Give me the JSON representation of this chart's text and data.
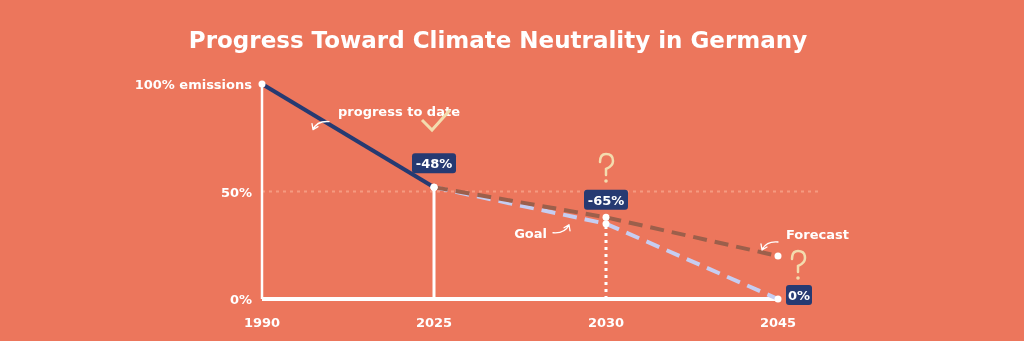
{
  "chart_data": {
    "type": "line",
    "title": "Progress Toward Climate Neutrality in Germany",
    "categories": [
      "1990",
      "2025",
      "2030",
      "2045"
    ],
    "series": [
      {
        "name": "progress to date",
        "color": "#263a72",
        "values": [
          100,
          52,
          null,
          null
        ],
        "line_style": "solid"
      },
      {
        "name": "Goal",
        "color": "#c6cdf2",
        "values": [
          null,
          52,
          35,
          0
        ],
        "line_style": "dashed"
      },
      {
        "name": "Forecast",
        "color": "#9c5f4b",
        "values": [
          null,
          52,
          38,
          20
        ],
        "line_style": "dashed"
      }
    ],
    "annotations": [
      {
        "text": "-48%",
        "x": "2025",
        "y": 52
      },
      {
        "text": "-65%",
        "x": "2030",
        "y": 35
      },
      {
        "text": "0%",
        "x": "2045",
        "y": 0
      }
    ],
    "ylim": [
      0,
      100
    ],
    "yticks": [
      {
        "value": 0,
        "label": "0%"
      },
      {
        "value": 50,
        "label": "50%"
      },
      {
        "value": 100,
        "label": "100% emissions"
      }
    ],
    "ref_lines": [
      {
        "axis": "y",
        "value": 50,
        "line_style": "dotted",
        "color": "#f59a80"
      },
      {
        "axis": "x",
        "value": "2025",
        "line_style": "solid",
        "color": "#ffffff"
      },
      {
        "axis": "x",
        "value": "2030",
        "line_style": "dotted",
        "color": "#ffffff"
      }
    ],
    "marker": "circle",
    "grid": false
  }
}
